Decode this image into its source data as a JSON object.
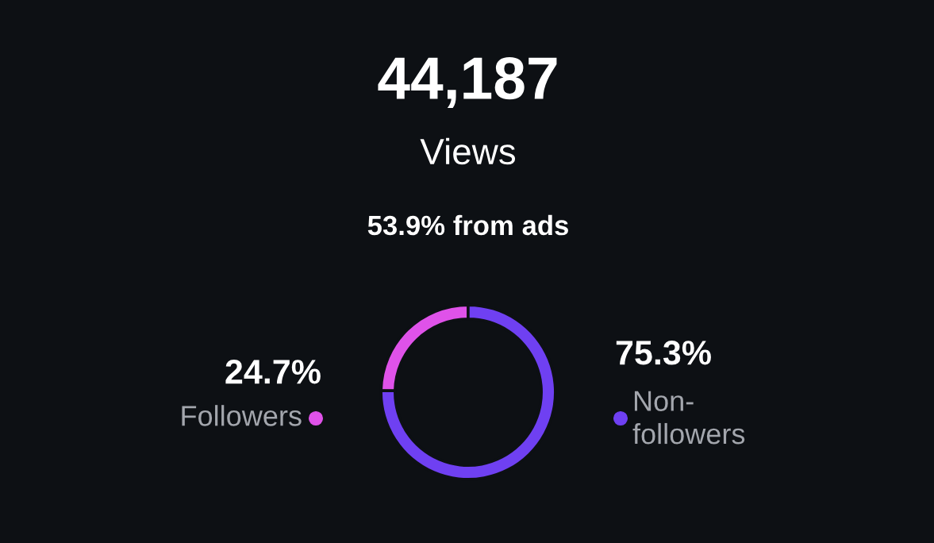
{
  "chart_data": {
    "type": "donut",
    "title": "44,187",
    "subtitle": "Views",
    "annotations": [
      "53.9% from ads"
    ],
    "categories": [
      "Followers",
      "Non-followers"
    ],
    "values": [
      24.7,
      75.3
    ],
    "colors": [
      "#df52e9",
      "#6f40f2"
    ],
    "value_labels": [
      "24.7%",
      "75.3%"
    ]
  }
}
